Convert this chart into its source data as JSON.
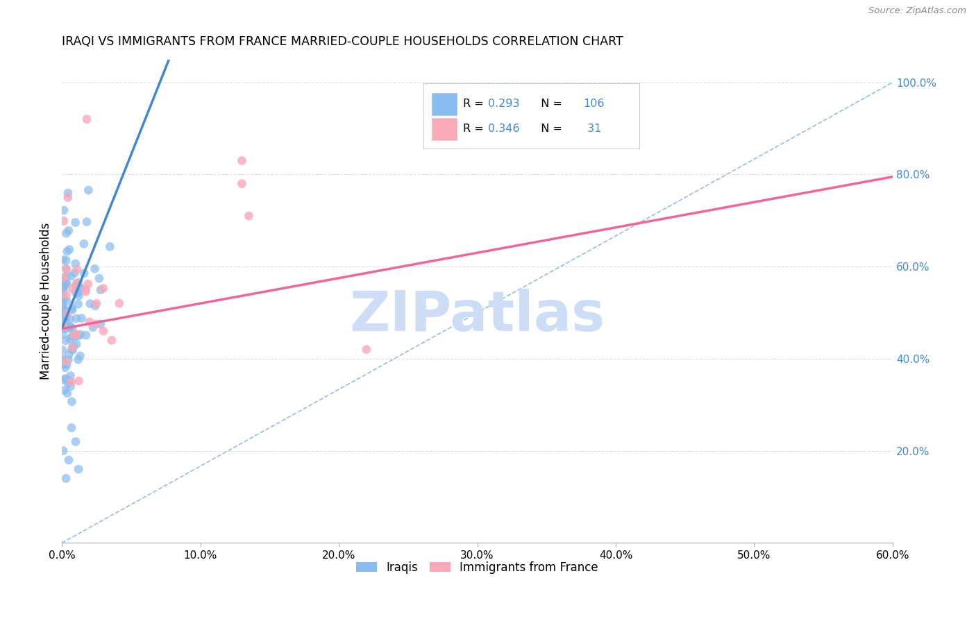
{
  "title": "IRAQI VS IMMIGRANTS FROM FRANCE MARRIED-COUPLE HOUSEHOLDS CORRELATION CHART",
  "source": "Source: ZipAtlas.com",
  "ylabel_label": "Married-couple Households",
  "xlim": [
    0.0,
    0.6
  ],
  "ylim": [
    0.0,
    1.05
  ],
  "legend_labels": [
    "Iraqis",
    "Immigrants from France"
  ],
  "R_iraqis": 0.293,
  "N_iraqis": 106,
  "R_france": 0.346,
  "N_france": 31,
  "color_iraqis": "#88bbee",
  "color_france": "#f8a8b8",
  "color_iraqis_line": "#4488cc",
  "color_france_line": "#ee6699",
  "color_dash": "#99bbdd",
  "watermark": "ZIPatlas",
  "watermark_color": "#ccddf5"
}
